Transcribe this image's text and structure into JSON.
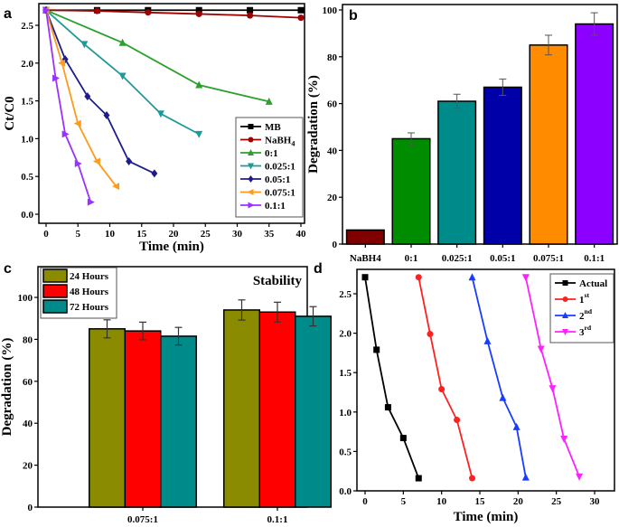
{
  "chart_data": [
    {
      "panel": "a",
      "type": "line",
      "xlabel": "Time (min)",
      "ylabel": "Ct/C0",
      "xlim": [
        -1,
        41
      ],
      "ylim": [
        -0.1,
        2.75
      ],
      "xticks": [
        0,
        5,
        10,
        15,
        20,
        25,
        30,
        35,
        40
      ],
      "yticks": [
        0.0,
        0.5,
        1.0,
        1.5,
        2.0,
        2.5
      ],
      "legend_position": "bottom-right",
      "series": [
        {
          "name": "MB",
          "color": "#000000",
          "marker": "square",
          "x": [
            0,
            8,
            16,
            24,
            32,
            40
          ],
          "y": [
            2.7,
            2.7,
            2.7,
            2.7,
            2.7,
            2.7
          ]
        },
        {
          "name": "NaBH4",
          "color": "#a00000",
          "marker": "circle",
          "x": [
            0,
            8,
            16,
            24,
            32,
            40
          ],
          "y": [
            2.7,
            2.69,
            2.67,
            2.65,
            2.63,
            2.6
          ]
        },
        {
          "name": "0:1",
          "color": "#2ca02c",
          "marker": "triangle-up",
          "x": [
            0,
            12,
            24,
            35
          ],
          "y": [
            2.7,
            2.27,
            1.71,
            1.49
          ]
        },
        {
          "name": "0.025:1",
          "color": "#1f9a9a",
          "marker": "triangle-down",
          "x": [
            0,
            6,
            12,
            18,
            24
          ],
          "y": [
            2.7,
            2.25,
            1.83,
            1.33,
            1.06
          ]
        },
        {
          "name": "0.05:1",
          "color": "#1c1c8c",
          "marker": "diamond",
          "x": [
            0,
            3,
            6.5,
            9.5,
            13,
            17
          ],
          "y": [
            2.7,
            2.05,
            1.56,
            1.31,
            0.7,
            0.54
          ]
        },
        {
          "name": "0.075:1",
          "color": "#ff9a1a",
          "marker": "triangle-left",
          "x": [
            0,
            2.5,
            5,
            8,
            11
          ],
          "y": [
            2.7,
            2.0,
            1.2,
            0.7,
            0.37
          ]
        },
        {
          "name": "0.1:1",
          "color": "#9b30ff",
          "marker": "triangle-right",
          "x": [
            0,
            1.5,
            3,
            5,
            7
          ],
          "y": [
            2.7,
            1.8,
            1.06,
            0.67,
            0.16
          ]
        }
      ]
    },
    {
      "panel": "b",
      "type": "bar",
      "ylabel": "Degradation (%)",
      "ylim": [
        0,
        100
      ],
      "yticks": [
        0,
        20,
        40,
        60,
        80,
        100
      ],
      "categories": [
        "NaBH4",
        "0:1",
        "0.025:1",
        "0.05:1",
        "0.075:1",
        "0.1:1"
      ],
      "values": [
        6,
        45,
        61,
        67,
        85,
        94
      ],
      "errors": [
        0,
        2.5,
        3,
        3.5,
        4.2,
        4.8
      ],
      "colors": [
        "#800000",
        "#008c00",
        "#008b8b",
        "#0000a8",
        "#ff8c00",
        "#8b00ff"
      ]
    },
    {
      "panel": "c",
      "type": "bar",
      "title": "Stability",
      "ylabel": "Degradation (%)",
      "ylim": [
        0,
        114
      ],
      "yticks": [
        0,
        20,
        40,
        60,
        80,
        100
      ],
      "categories": [
        "0.075:1",
        "0.1:1"
      ],
      "legend_position": "top-left",
      "series": [
        {
          "name": "24 Hours",
          "color": "#8b8b00",
          "values": [
            85,
            94
          ],
          "errors": [
            4.3,
            4.8
          ]
        },
        {
          "name": "48 Hours",
          "color": "#ff0000",
          "values": [
            84,
            93
          ],
          "errors": [
            4.2,
            4.7
          ]
        },
        {
          "name": "72 Hours",
          "color": "#008b8b",
          "values": [
            81.5,
            91
          ],
          "errors": [
            4.2,
            4.6
          ]
        }
      ]
    },
    {
      "panel": "d",
      "type": "line",
      "xlabel": "Time (min)",
      "ylabel": "Ct/C0",
      "xlim": [
        -1,
        32
      ],
      "ylim": [
        0,
        2.8
      ],
      "xticks": [
        0,
        5,
        10,
        15,
        20,
        25,
        30
      ],
      "yticks": [
        0.0,
        0.5,
        1.0,
        1.5,
        2.0,
        2.5
      ],
      "legend_position": "top-right",
      "series": [
        {
          "name": "Actual",
          "color": "#000000",
          "marker": "square",
          "x": [
            0,
            1.5,
            3,
            5,
            7
          ],
          "y": [
            2.71,
            1.79,
            1.06,
            0.67,
            0.16
          ]
        },
        {
          "name": "1st",
          "color": "#ff2020",
          "marker": "circle",
          "x": [
            7,
            8.5,
            10,
            12,
            14
          ],
          "y": [
            2.71,
            1.99,
            1.29,
            0.9,
            0.16
          ]
        },
        {
          "name": "2nd",
          "color": "#1a3cff",
          "marker": "triangle-up",
          "x": [
            14,
            16,
            18,
            19.8,
            21
          ],
          "y": [
            2.71,
            1.9,
            1.18,
            0.81,
            0.17
          ]
        },
        {
          "name": "3rd",
          "color": "#ff20ff",
          "marker": "triangle-down",
          "x": [
            21,
            23,
            24.5,
            26,
            28
          ],
          "y": [
            2.71,
            1.8,
            1.3,
            0.66,
            0.18
          ]
        }
      ]
    }
  ]
}
